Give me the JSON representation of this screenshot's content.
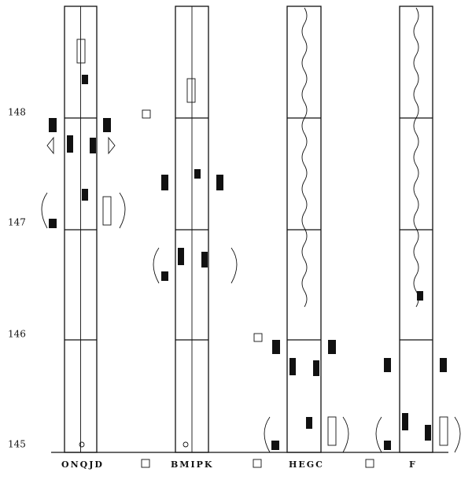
{
  "measure_numbers": [
    "148",
    "147",
    "146",
    "145"
  ],
  "staffs": [
    {
      "label": "ONQJD"
    },
    {
      "label": "BMIPK"
    },
    {
      "label": "HEGC"
    },
    {
      "label": "F"
    }
  ]
}
